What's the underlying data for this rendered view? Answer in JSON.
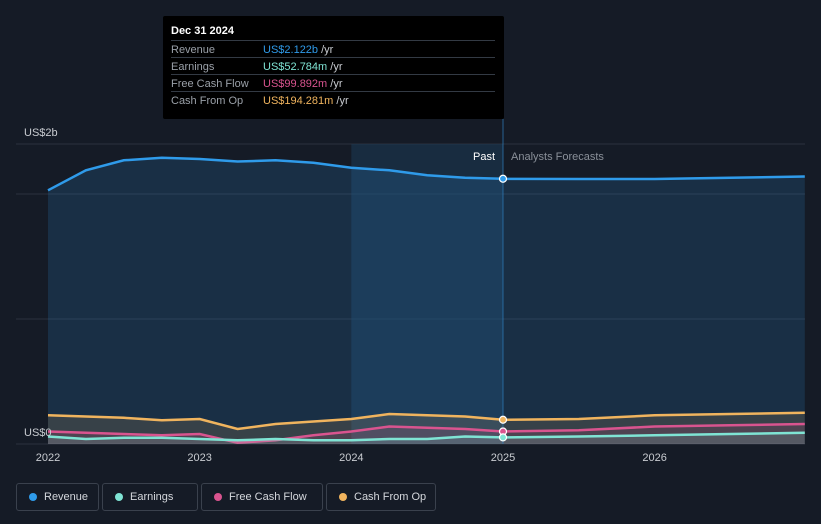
{
  "tooltip": {
    "date": "Dec 31 2024",
    "rows": [
      {
        "label": "Revenue",
        "value": "US$2.122b",
        "unit": "/yr",
        "color": "#2f9bea"
      },
      {
        "label": "Earnings",
        "value": "US$52.784m",
        "unit": "/yr",
        "color": "#7fe4d4"
      },
      {
        "label": "Free Cash Flow",
        "value": "US$99.892m",
        "unit": "/yr",
        "color": "#d9548f"
      },
      {
        "label": "Cash From Op",
        "value": "US$194.281m",
        "unit": "/yr",
        "color": "#f0b45e"
      }
    ]
  },
  "legend": [
    {
      "label": "Revenue",
      "color": "#2f9bea"
    },
    {
      "label": "Earnings",
      "color": "#7fe4d4"
    },
    {
      "label": "Free Cash Flow",
      "color": "#d9548f"
    },
    {
      "label": "Cash From Op",
      "color": "#f0b45e"
    }
  ],
  "chart_data": {
    "type": "area",
    "y_top_label": "US$2b",
    "y_zero_label": "US$0",
    "past_label": "Past",
    "forecast_label": "Analysts Forecasts",
    "divider_x": 2025.0,
    "highlight_start_x": 2024.0,
    "xlim": [
      2021.8,
      2026.99
    ],
    "ylim": [
      0,
      2.4
    ],
    "x_ticks": [
      2022,
      2023,
      2024,
      2025,
      2026
    ],
    "x_tick_labels": [
      "2022",
      "2023",
      "2024",
      "2025",
      "2026"
    ],
    "grid_y": [
      0,
      1,
      2
    ],
    "series": [
      {
        "name": "Revenue",
        "color": "#2f9bea",
        "fill": true,
        "x": [
          2022.0,
          2022.25,
          2022.5,
          2022.75,
          2023.0,
          2023.25,
          2023.5,
          2023.75,
          2024.0,
          2024.25,
          2024.5,
          2024.75,
          2025.0,
          2025.5,
          2026.0,
          2026.5,
          2026.99
        ],
        "y": [
          2.03,
          2.19,
          2.27,
          2.29,
          2.28,
          2.26,
          2.27,
          2.25,
          2.21,
          2.19,
          2.15,
          2.13,
          2.122,
          2.12,
          2.12,
          2.13,
          2.14
        ]
      },
      {
        "name": "Cash From Op",
        "color": "#f0b45e",
        "fill": true,
        "x": [
          2022.0,
          2022.25,
          2022.5,
          2022.75,
          2023.0,
          2023.25,
          2023.5,
          2023.75,
          2024.0,
          2024.25,
          2024.5,
          2024.75,
          2025.0,
          2025.5,
          2026.0,
          2026.5,
          2026.99
        ],
        "y": [
          0.23,
          0.22,
          0.21,
          0.19,
          0.2,
          0.12,
          0.16,
          0.18,
          0.2,
          0.24,
          0.23,
          0.22,
          0.194,
          0.2,
          0.23,
          0.24,
          0.25
        ]
      },
      {
        "name": "Free Cash Flow",
        "color": "#d9548f",
        "fill": true,
        "x": [
          2022.0,
          2022.25,
          2022.5,
          2022.75,
          2023.0,
          2023.25,
          2023.5,
          2023.75,
          2024.0,
          2024.25,
          2024.5,
          2024.75,
          2025.0,
          2025.5,
          2026.0,
          2026.5,
          2026.99
        ],
        "y": [
          0.1,
          0.09,
          0.08,
          0.07,
          0.08,
          0.01,
          0.03,
          0.07,
          0.1,
          0.14,
          0.13,
          0.12,
          0.0999,
          0.11,
          0.14,
          0.15,
          0.16
        ]
      },
      {
        "name": "Earnings",
        "color": "#7fe4d4",
        "fill": true,
        "x": [
          2022.0,
          2022.25,
          2022.5,
          2022.75,
          2023.0,
          2023.25,
          2023.5,
          2023.75,
          2024.0,
          2024.25,
          2024.5,
          2024.75,
          2025.0,
          2025.5,
          2026.0,
          2026.5,
          2026.99
        ],
        "y": [
          0.06,
          0.04,
          0.05,
          0.05,
          0.04,
          0.03,
          0.04,
          0.03,
          0.03,
          0.04,
          0.04,
          0.06,
          0.0528,
          0.06,
          0.07,
          0.08,
          0.09
        ]
      }
    ]
  }
}
